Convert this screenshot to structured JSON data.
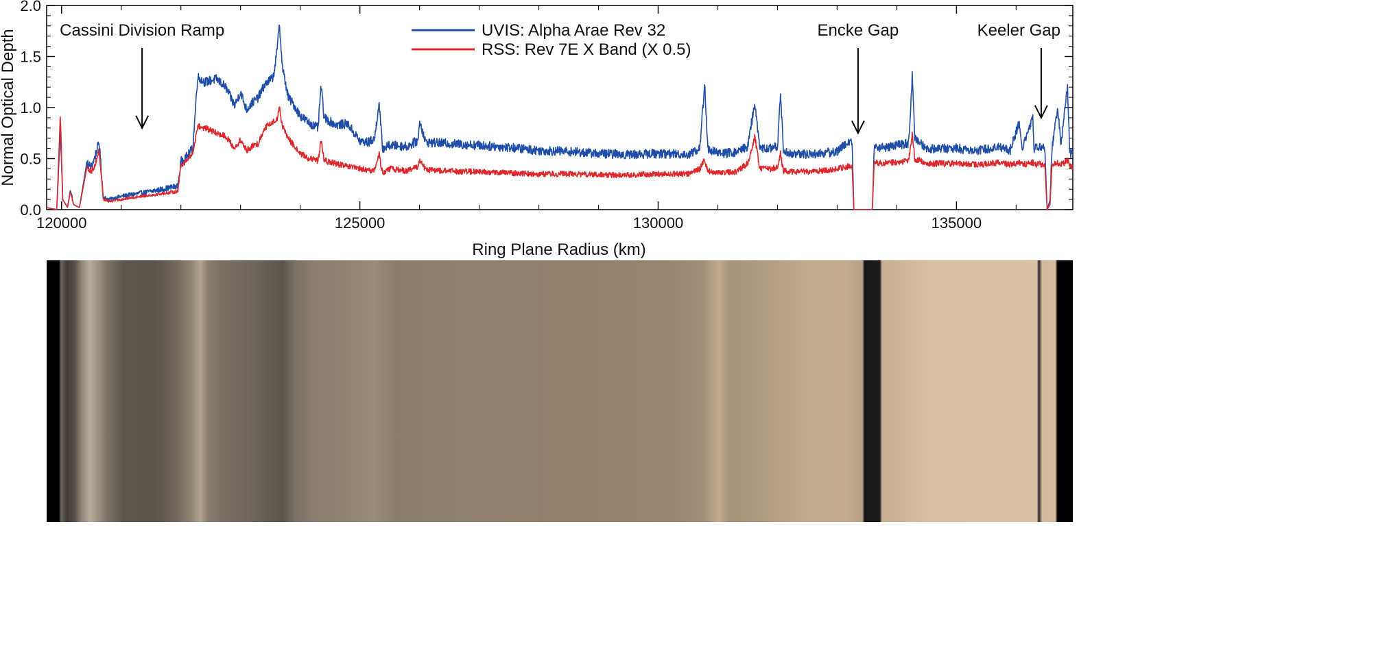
{
  "chart_data": {
    "type": "line",
    "xlabel": "Ring Plane Radius (km)",
    "ylabel": "Normal Optical Depth",
    "xlim": [
      119750,
      136950
    ],
    "ylim": [
      0,
      2.0
    ],
    "x_ticks": [
      120000,
      125000,
      130000,
      135000
    ],
    "x_tick_labels": [
      "120000",
      "125000",
      "130000",
      "135000"
    ],
    "y_ticks": [
      0,
      0.5,
      1.0,
      1.5,
      2.0
    ],
    "y_tick_labels": [
      "0.0",
      "0.5",
      "1.0",
      "1.5",
      "2.0"
    ],
    "grid": false,
    "legend_position": "top-center",
    "series": [
      {
        "name": "UVIS: Alpha Arae Rev 32",
        "color": "#1f4ea8",
        "points": [
          [
            119750,
            0.02
          ],
          [
            119920,
            0.0
          ],
          [
            119980,
            0.78
          ],
          [
            120020,
            0.1
          ],
          [
            120100,
            0.02
          ],
          [
            120150,
            0.2
          ],
          [
            120200,
            0.05
          ],
          [
            120300,
            0.02
          ],
          [
            120420,
            0.45
          ],
          [
            120500,
            0.42
          ],
          [
            120550,
            0.5
          ],
          [
            120630,
            0.66
          ],
          [
            120700,
            0.12
          ],
          [
            120800,
            0.1
          ],
          [
            121000,
            0.13
          ],
          [
            121300,
            0.16
          ],
          [
            121600,
            0.19
          ],
          [
            121950,
            0.23
          ],
          [
            122000,
            0.47
          ],
          [
            122100,
            0.52
          ],
          [
            122200,
            0.6
          ],
          [
            122280,
            1.3
          ],
          [
            122400,
            1.25
          ],
          [
            122600,
            1.28
          ],
          [
            122750,
            1.2
          ],
          [
            122900,
            1.02
          ],
          [
            123000,
            1.15
          ],
          [
            123100,
            0.98
          ],
          [
            123200,
            1.05
          ],
          [
            123300,
            1.1
          ],
          [
            123400,
            1.22
          ],
          [
            123550,
            1.3
          ],
          [
            123620,
            1.6
          ],
          [
            123650,
            1.84
          ],
          [
            123700,
            1.4
          ],
          [
            123800,
            1.1
          ],
          [
            123900,
            1.02
          ],
          [
            124000,
            0.92
          ],
          [
            124150,
            0.85
          ],
          [
            124300,
            0.8
          ],
          [
            124350,
            1.22
          ],
          [
            124400,
            0.9
          ],
          [
            124600,
            0.83
          ],
          [
            124800,
            0.84
          ],
          [
            125000,
            0.67
          ],
          [
            125150,
            0.66
          ],
          [
            125250,
            0.7
          ],
          [
            125320,
            1.05
          ],
          [
            125380,
            0.6
          ],
          [
            125500,
            0.63
          ],
          [
            125800,
            0.62
          ],
          [
            125980,
            0.68
          ],
          [
            126000,
            0.88
          ],
          [
            126100,
            0.66
          ],
          [
            126400,
            0.65
          ],
          [
            127000,
            0.63
          ],
          [
            127500,
            0.61
          ],
          [
            128000,
            0.58
          ],
          [
            128500,
            0.57
          ],
          [
            129000,
            0.55
          ],
          [
            129500,
            0.54
          ],
          [
            130000,
            0.55
          ],
          [
            130500,
            0.54
          ],
          [
            130700,
            0.6
          ],
          [
            130780,
            1.25
          ],
          [
            130830,
            0.6
          ],
          [
            131000,
            0.55
          ],
          [
            131300,
            0.56
          ],
          [
            131500,
            0.62
          ],
          [
            131620,
            1.05
          ],
          [
            131700,
            0.6
          ],
          [
            131900,
            0.6
          ],
          [
            132000,
            0.62
          ],
          [
            132050,
            1.15
          ],
          [
            132100,
            0.57
          ],
          [
            132300,
            0.54
          ],
          [
            132700,
            0.55
          ],
          [
            133000,
            0.57
          ],
          [
            133150,
            0.65
          ],
          [
            133250,
            0.68
          ],
          [
            133280,
            0.0
          ],
          [
            133500,
            0.0
          ],
          [
            133590,
            0.0
          ],
          [
            133620,
            0.6
          ],
          [
            133900,
            0.62
          ],
          [
            134200,
            0.65
          ],
          [
            134260,
            1.33
          ],
          [
            134300,
            0.7
          ],
          [
            134500,
            0.6
          ],
          [
            135000,
            0.6
          ],
          [
            135400,
            0.58
          ],
          [
            135700,
            0.62
          ],
          [
            135900,
            0.58
          ],
          [
            136050,
            0.85
          ],
          [
            136100,
            0.6
          ],
          [
            136280,
            0.9
          ],
          [
            136300,
            0.6
          ],
          [
            136480,
            0.62
          ],
          [
            136520,
            0.0
          ],
          [
            136570,
            0.1
          ],
          [
            136600,
            0.6
          ],
          [
            136700,
            1.0
          ],
          [
            136750,
            0.62
          ],
          [
            136860,
            1.22
          ],
          [
            136900,
            0.55
          ]
        ]
      },
      {
        "name": "RSS: Rev 7E X Band (X 0.5)",
        "color": "#e0282c",
        "points": [
          [
            119750,
            0.02
          ],
          [
            119920,
            0.0
          ],
          [
            119980,
            0.94
          ],
          [
            120020,
            0.1
          ],
          [
            120100,
            0.02
          ],
          [
            120150,
            0.18
          ],
          [
            120200,
            0.05
          ],
          [
            120300,
            0.02
          ],
          [
            120420,
            0.4
          ],
          [
            120500,
            0.38
          ],
          [
            120550,
            0.42
          ],
          [
            120630,
            0.58
          ],
          [
            120700,
            0.1
          ],
          [
            120800,
            0.08
          ],
          [
            121000,
            0.1
          ],
          [
            121300,
            0.13
          ],
          [
            121600,
            0.15
          ],
          [
            121950,
            0.18
          ],
          [
            122000,
            0.44
          ],
          [
            122100,
            0.48
          ],
          [
            122200,
            0.55
          ],
          [
            122280,
            0.82
          ],
          [
            122400,
            0.8
          ],
          [
            122600,
            0.75
          ],
          [
            122750,
            0.72
          ],
          [
            122900,
            0.6
          ],
          [
            123000,
            0.68
          ],
          [
            123100,
            0.58
          ],
          [
            123200,
            0.62
          ],
          [
            123300,
            0.65
          ],
          [
            123400,
            0.8
          ],
          [
            123550,
            0.86
          ],
          [
            123620,
            0.9
          ],
          [
            123650,
            1.0
          ],
          [
            123700,
            0.82
          ],
          [
            123800,
            0.7
          ],
          [
            123900,
            0.62
          ],
          [
            124000,
            0.55
          ],
          [
            124150,
            0.5
          ],
          [
            124300,
            0.48
          ],
          [
            124350,
            0.68
          ],
          [
            124400,
            0.48
          ],
          [
            124600,
            0.45
          ],
          [
            124800,
            0.42
          ],
          [
            125000,
            0.4
          ],
          [
            125150,
            0.38
          ],
          [
            125250,
            0.39
          ],
          [
            125320,
            0.55
          ],
          [
            125380,
            0.36
          ],
          [
            125500,
            0.4
          ],
          [
            125800,
            0.38
          ],
          [
            125980,
            0.42
          ],
          [
            126000,
            0.5
          ],
          [
            126100,
            0.39
          ],
          [
            126400,
            0.38
          ],
          [
            127000,
            0.37
          ],
          [
            127500,
            0.36
          ],
          [
            128000,
            0.35
          ],
          [
            128500,
            0.35
          ],
          [
            129000,
            0.34
          ],
          [
            129500,
            0.34
          ],
          [
            130000,
            0.35
          ],
          [
            130500,
            0.35
          ],
          [
            130700,
            0.4
          ],
          [
            130780,
            0.5
          ],
          [
            130830,
            0.38
          ],
          [
            131000,
            0.36
          ],
          [
            131300,
            0.37
          ],
          [
            131500,
            0.45
          ],
          [
            131620,
            0.72
          ],
          [
            131700,
            0.4
          ],
          [
            131900,
            0.4
          ],
          [
            132000,
            0.42
          ],
          [
            132050,
            0.55
          ],
          [
            132100,
            0.38
          ],
          [
            132300,
            0.37
          ],
          [
            132700,
            0.38
          ],
          [
            133000,
            0.4
          ],
          [
            133150,
            0.42
          ],
          [
            133250,
            0.43
          ],
          [
            133280,
            0.0
          ],
          [
            133500,
            0.0
          ],
          [
            133590,
            0.0
          ],
          [
            133620,
            0.45
          ],
          [
            133900,
            0.46
          ],
          [
            134200,
            0.48
          ],
          [
            134260,
            0.75
          ],
          [
            134300,
            0.5
          ],
          [
            134500,
            0.45
          ],
          [
            135000,
            0.45
          ],
          [
            135400,
            0.44
          ],
          [
            135700,
            0.46
          ],
          [
            135900,
            0.44
          ],
          [
            136050,
            0.46
          ],
          [
            136100,
            0.44
          ],
          [
            136280,
            0.46
          ],
          [
            136300,
            0.44
          ],
          [
            136480,
            0.45
          ],
          [
            136520,
            0.0
          ],
          [
            136570,
            0.05
          ],
          [
            136600,
            0.45
          ],
          [
            136700,
            0.46
          ],
          [
            136750,
            0.44
          ],
          [
            136860,
            0.48
          ],
          [
            136900,
            0.42
          ]
        ]
      }
    ],
    "annotations": [
      {
        "text": "Cassini Division Ramp",
        "x": 121350,
        "y_tip": 0.8
      },
      {
        "text": "Encke Gap",
        "x": 133350,
        "y_tip": 0.75
      },
      {
        "text": "Keeler Gap",
        "x": 136420,
        "y_tip": 0.9
      }
    ]
  },
  "ring_image": {
    "colors": {
      "background": "#000000",
      "inner_gray": "#7d7468",
      "mid_tan": "#8d7f6d",
      "outer_tan": "#d9bfa3",
      "gap": "#141414"
    }
  }
}
